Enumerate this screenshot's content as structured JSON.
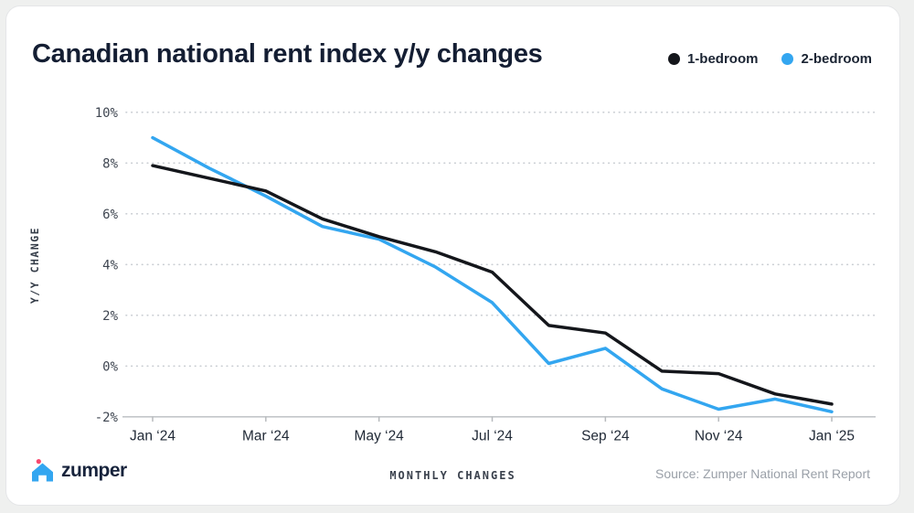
{
  "card": {
    "title": "Canadian national rent index y/y changes",
    "legend": [
      {
        "label": "1-bedroom",
        "color": "#14161b"
      },
      {
        "label": "2-bedroom",
        "color": "#33a6f0"
      }
    ],
    "footer": {
      "brand": "zumper",
      "center_label": "MONTHLY CHANGES",
      "source": "Source: Zumper National Rent Report"
    }
  },
  "chart_data": {
    "type": "line",
    "title": "Canadian national rent index y/y changes",
    "xlabel": "MONTHLY CHANGES",
    "ylabel": "Y/Y CHANGE",
    "x": [
      "Jan ‘24",
      "Feb ‘24",
      "Mar ‘24",
      "Apr ‘24",
      "May ‘24",
      "Jun ‘24",
      "Jul ‘24",
      "Aug ‘24",
      "Sep ‘24",
      "Oct ‘24",
      "Nov ‘24",
      "Dec ‘24",
      "Jan ‘25"
    ],
    "x_tick_positions": [
      0,
      2,
      4,
      6,
      8,
      10,
      12
    ],
    "x_tick_labels": [
      "Jan ‘24",
      "Mar ‘24",
      "May ‘24",
      "Jul ‘24",
      "Sep ‘24",
      "Nov ‘24",
      "Jan ‘25"
    ],
    "y_ticks": [
      "10%",
      "8%",
      "6%",
      "4%",
      "2%",
      "0%",
      "-2%"
    ],
    "y_tick_values": [
      10,
      8,
      6,
      4,
      2,
      0,
      -2
    ],
    "ylim": [
      -2,
      10
    ],
    "grid": "dotted horizontal gridlines, solid bottom axis",
    "legend_position": "top-right",
    "series": [
      {
        "name": "1-bedroom",
        "color": "#14161b",
        "values": [
          7.9,
          7.4,
          6.9,
          5.8,
          5.1,
          4.5,
          3.7,
          1.6,
          1.3,
          -0.2,
          -0.3,
          -1.1,
          -1.5
        ]
      },
      {
        "name": "2-bedroom",
        "color": "#33a6f0",
        "values": [
          9.0,
          7.8,
          6.7,
          5.5,
          5.0,
          3.9,
          2.5,
          0.1,
          0.7,
          -0.9,
          -1.7,
          -1.3,
          -1.8
        ]
      }
    ]
  }
}
